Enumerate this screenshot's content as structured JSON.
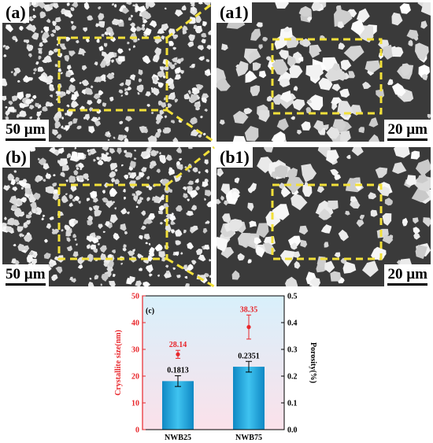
{
  "panels": [
    {
      "id": "a",
      "label": "(a)",
      "scale": "50 µm"
    },
    {
      "id": "a1",
      "label": "(a1)",
      "scale": "20 µm"
    },
    {
      "id": "b",
      "label": "(b)",
      "scale": "50 µm"
    },
    {
      "id": "b1",
      "label": "(b1)",
      "scale": "20 µm"
    }
  ],
  "colors": {
    "highlight": "#f2e03a",
    "left_axis": "#e8262b",
    "bar": "#1ea5dc",
    "bg_top": "#d8f0fb",
    "bg_bottom": "#fbe1ea"
  },
  "chart_data": {
    "type": "bar",
    "panel_label": "(c)",
    "categories": [
      "NWB25",
      "NWB75"
    ],
    "series": [
      {
        "name": "Porosity(%)",
        "axis": "right",
        "values": [
          0.1813,
          0.2351
        ],
        "labels": [
          "0.1813",
          "0.2351"
        ],
        "errors": [
          0.02,
          0.02
        ]
      },
      {
        "name": "Crystallite size(nm)",
        "axis": "left",
        "values": [
          28.14,
          38.35
        ],
        "labels": [
          "28.14",
          "38.35"
        ],
        "errors": [
          1.5,
          4.5
        ]
      }
    ],
    "ylabel_left": "Crystallite size(nm)",
    "ylabel_right": "Porosity(%)",
    "ylim_left": [
      0,
      50
    ],
    "ylim_right": [
      0.0,
      0.5
    ],
    "yticks_left": [
      "0",
      "10",
      "20",
      "30",
      "40",
      "50"
    ],
    "yticks_right": [
      "0.0",
      "0.1",
      "0.2",
      "0.3",
      "0.4",
      "0.5"
    ]
  }
}
